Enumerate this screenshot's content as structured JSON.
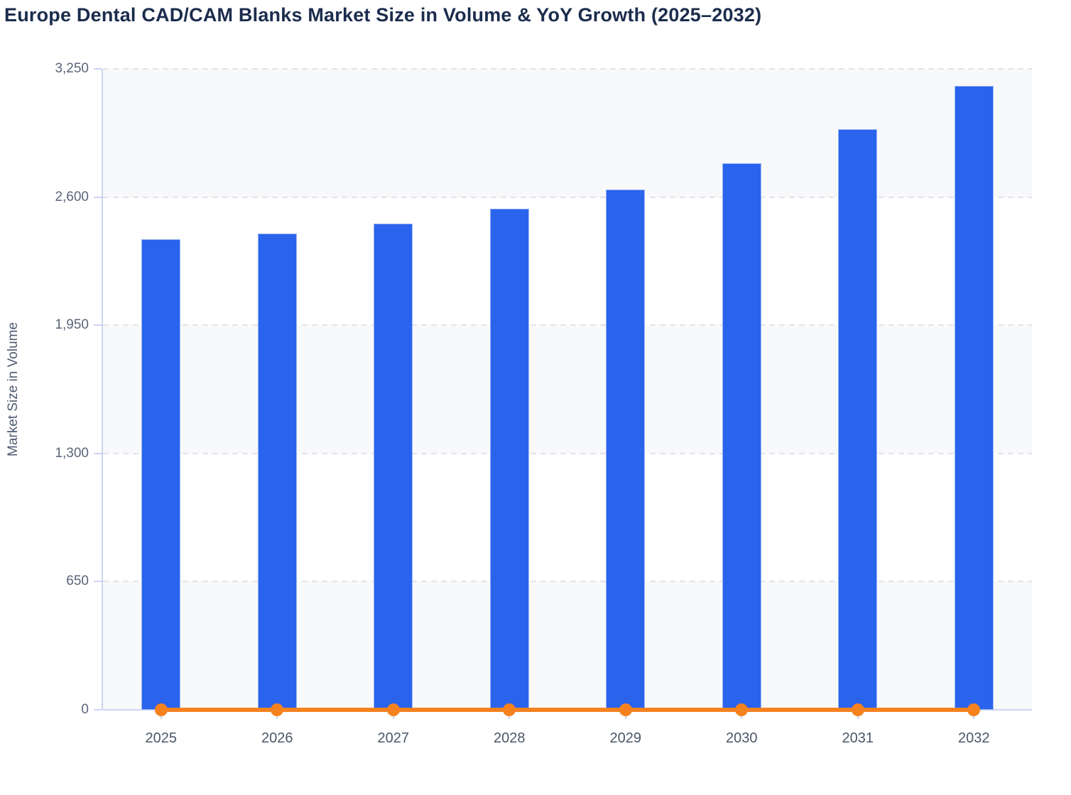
{
  "page": {
    "title": "Europe Dental CAD/CAM Blanks Market Size in Volume & YoY Growth (2025–2032)"
  },
  "chart_data": {
    "type": "bar",
    "title": "Europe Dental CAD/CAM Blanks Market Size in Volume & YoY Growth (2025–2032)",
    "categories": [
      "2025",
      "2026",
      "2027",
      "2028",
      "2029",
      "2030",
      "2031",
      "2032"
    ],
    "series": [
      {
        "name": "Market Size in Volume",
        "type": "bar",
        "color": "#2a63ec",
        "values": [
          2385,
          2415,
          2465,
          2540,
          2640,
          2770,
          2945,
          3165
        ]
      },
      {
        "name": "YoY Growth",
        "type": "line",
        "color": "#f5821f",
        "marker": "circle",
        "values": [
          0,
          0,
          0,
          0,
          0,
          0,
          0,
          0
        ]
      }
    ],
    "xlabel": "",
    "ylabel": "Market Size in Volume",
    "ylim": [
      0,
      3250
    ],
    "yticks": [
      0,
      650,
      1300,
      1950,
      2600,
      3250
    ],
    "ytick_labels": [
      "0",
      "650",
      "1,300",
      "1,950",
      "2,600",
      "3,250"
    ],
    "grid": "horizontal-dashed",
    "band_fill": "alternating horizontal bands shaded from 0 upward (0–650, 1300–1950, 2600–3250)",
    "legend": "none"
  }
}
